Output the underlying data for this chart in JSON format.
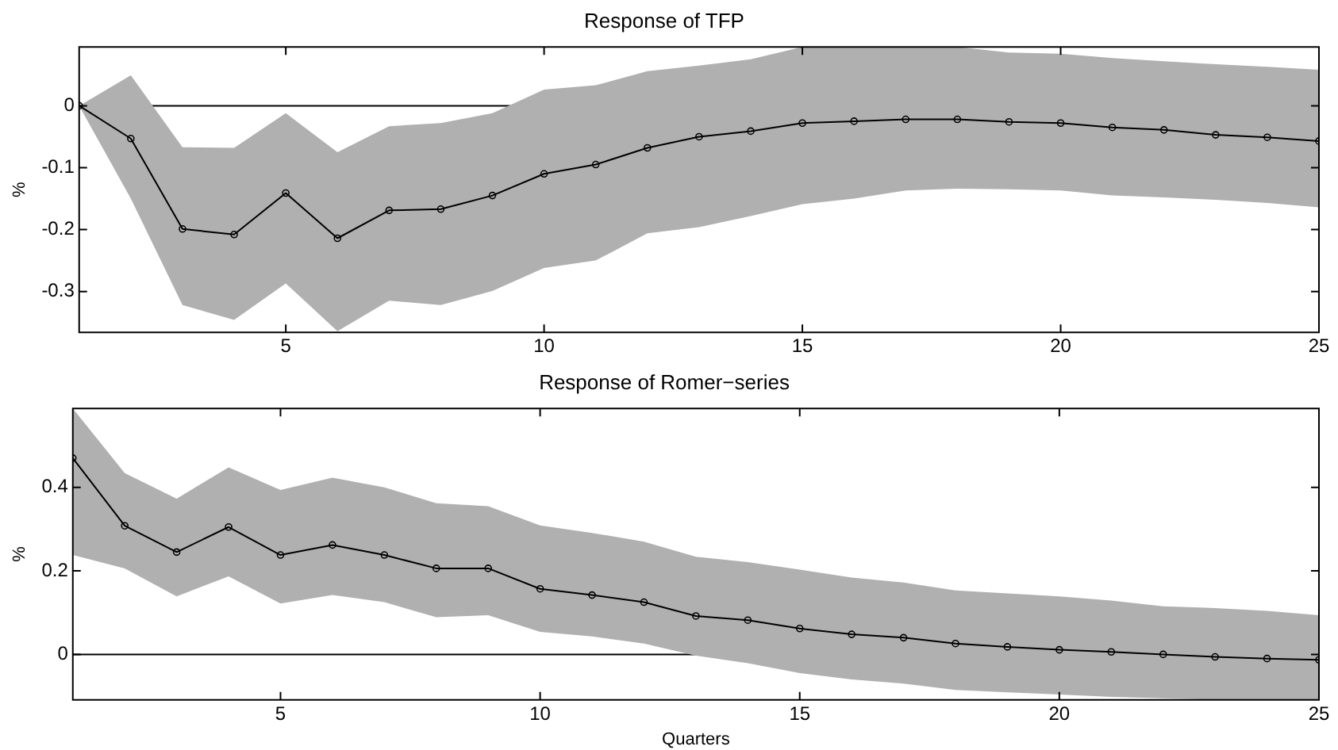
{
  "chart_data": [
    {
      "type": "line",
      "title": "Response of TFP",
      "ylabel": "%",
      "xlim": [
        1,
        25
      ],
      "xticks": [
        5,
        10,
        15,
        20,
        25
      ],
      "ylim": [
        -0.366,
        0.095
      ],
      "yticks": [
        -0.3,
        -0.2,
        -0.1,
        0
      ],
      "grid": false,
      "legend": false,
      "marker": "circle",
      "line_style": "solid",
      "x": [
        1,
        2,
        3,
        4,
        5,
        6,
        7,
        8,
        9,
        10,
        11,
        12,
        13,
        14,
        15,
        16,
        17,
        18,
        19,
        20,
        21,
        22,
        23,
        24,
        25
      ],
      "series": [
        {
          "color": "#000000",
          "values": [
            0,
            -0.053,
            -0.199,
            -0.208,
            -0.141,
            -0.214,
            -0.169,
            -0.167,
            -0.145,
            -0.11,
            -0.095,
            -0.068,
            -0.05,
            -0.041,
            -0.028,
            -0.025,
            -0.022,
            -0.022,
            -0.026,
            -0.028,
            -0.035,
            -0.039,
            -0.047,
            -0.051,
            -0.057
          ],
          "upper": [
            0,
            0.049,
            -0.067,
            -0.068,
            -0.012,
            -0.075,
            -0.033,
            -0.028,
            -0.012,
            0.026,
            0.033,
            0.056,
            0.065,
            0.075,
            0.095,
            0.095,
            0.095,
            0.095,
            0.086,
            0.084,
            0.077,
            0.072,
            0.067,
            0.063,
            0.058
          ],
          "lower": [
            0,
            -0.15,
            -0.322,
            -0.346,
            -0.287,
            -0.364,
            -0.315,
            -0.322,
            -0.299,
            -0.262,
            -0.25,
            -0.206,
            -0.196,
            -0.178,
            -0.159,
            -0.15,
            -0.137,
            -0.134,
            -0.135,
            -0.137,
            -0.145,
            -0.148,
            -0.152,
            -0.157,
            -0.164
          ]
        }
      ],
      "ref_lines": [
        {
          "axis": "y",
          "value": 0,
          "color": "#000000"
        }
      ]
    },
    {
      "type": "line",
      "title": "Response of Romer−series",
      "xlabel": "Quarters",
      "ylabel": "%",
      "xlim": [
        1,
        25
      ],
      "xticks": [
        5,
        10,
        15,
        20,
        25
      ],
      "ylim": [
        -0.109,
        0.589
      ],
      "yticks": [
        0,
        0.2,
        0.4
      ],
      "grid": false,
      "legend": false,
      "marker": "circle",
      "line_style": "solid",
      "x": [
        1,
        2,
        3,
        4,
        5,
        6,
        7,
        8,
        9,
        10,
        11,
        12,
        13,
        14,
        15,
        16,
        17,
        18,
        19,
        20,
        21,
        22,
        23,
        24,
        25
      ],
      "series": [
        {
          "color": "#000000",
          "values": [
            0.47,
            0.308,
            0.245,
            0.305,
            0.238,
            0.262,
            0.238,
            0.206,
            0.206,
            0.157,
            0.142,
            0.125,
            0.092,
            0.082,
            0.062,
            0.048,
            0.04,
            0.026,
            0.018,
            0.011,
            0.006,
            0,
            -0.006,
            -0.01,
            -0.013
          ],
          "upper": [
            0.589,
            0.434,
            0.373,
            0.448,
            0.394,
            0.423,
            0.4,
            0.362,
            0.355,
            0.309,
            0.291,
            0.27,
            0.234,
            0.221,
            0.203,
            0.184,
            0.172,
            0.153,
            0.146,
            0.139,
            0.129,
            0.115,
            0.111,
            0.104,
            0.094
          ],
          "lower": [
            0.238,
            0.206,
            0.139,
            0.187,
            0.122,
            0.142,
            0.125,
            0.089,
            0.094,
            0.054,
            0.043,
            0.026,
            -0.003,
            -0.021,
            -0.045,
            -0.06,
            -0.07,
            -0.085,
            -0.091,
            -0.096,
            -0.102,
            -0.105,
            -0.108,
            -0.109,
            -0.109
          ]
        }
      ],
      "ref_lines": [
        {
          "axis": "y",
          "value": 0,
          "color": "#000000"
        }
      ]
    }
  ]
}
